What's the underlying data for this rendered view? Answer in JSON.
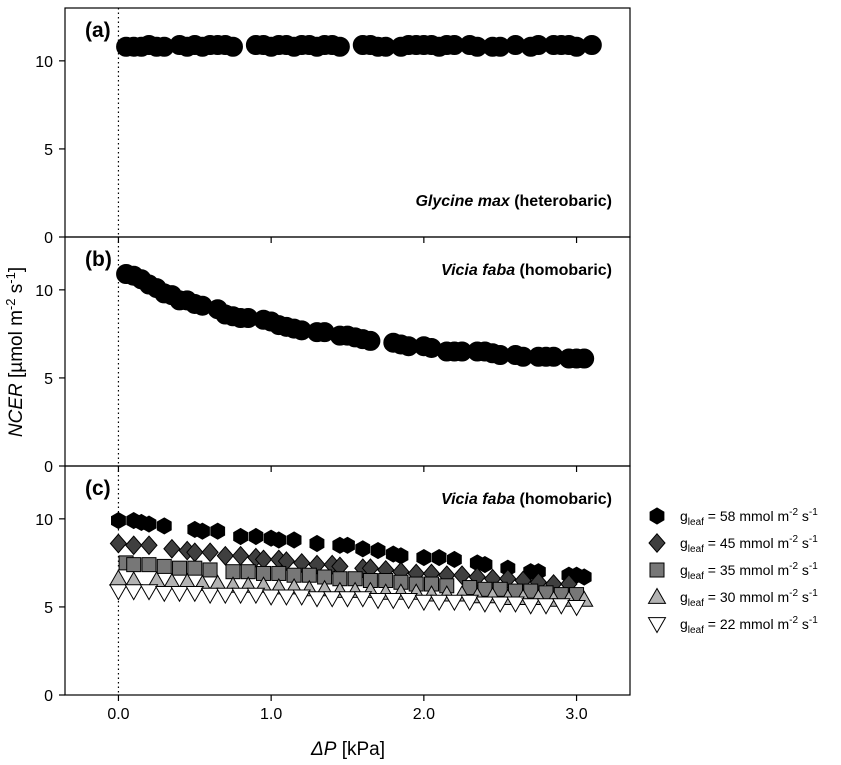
{
  "chart_data": {
    "type": "scatter",
    "xlabel": {
      "var": "ΔP",
      "unit": " [kPa]"
    },
    "ylabel": {
      "var": "NCER",
      "unit_pre": " [µmol m",
      "sup1": "-2",
      "mid": " s",
      "sup2": "-1",
      "end": "]"
    },
    "xlim": [
      -0.35,
      3.35
    ],
    "x_ticks": [
      {
        "value": 0,
        "label": "0.0"
      },
      {
        "value": 1,
        "label": "1.0"
      },
      {
        "value": 2,
        "label": "2.0"
      },
      {
        "value": 3,
        "label": "3.0"
      }
    ],
    "reference_line_x": 0,
    "panels": [
      {
        "id": "a",
        "label": "(a)",
        "ylim": [
          0,
          13
        ],
        "y_ticks": [
          {
            "value": 0,
            "label": "0"
          },
          {
            "value": 5,
            "label": "5"
          },
          {
            "value": 10,
            "label": "10"
          }
        ],
        "annotation": {
          "italic": "Glycine max",
          "normal": " (heterobaric)"
        },
        "series": [
          {
            "marker": "circle",
            "fill": "#000000",
            "x": [
              0.05,
              0.1,
              0.15,
              0.2,
              0.25,
              0.3,
              0.4,
              0.45,
              0.5,
              0.55,
              0.6,
              0.65,
              0.7,
              0.75,
              0.9,
              0.95,
              1.0,
              1.05,
              1.1,
              1.15,
              1.2,
              1.25,
              1.3,
              1.35,
              1.4,
              1.45,
              1.6,
              1.65,
              1.7,
              1.75,
              1.85,
              1.9,
              1.95,
              2.0,
              2.05,
              2.1,
              2.15,
              2.2,
              2.3,
              2.35,
              2.45,
              2.5,
              2.6,
              2.7,
              2.75,
              2.85,
              2.9,
              2.95,
              3.0,
              3.1
            ],
            "y": [
              10.8,
              10.8,
              10.8,
              10.9,
              10.8,
              10.8,
              10.9,
              10.8,
              10.9,
              10.8,
              10.9,
              10.9,
              10.9,
              10.8,
              10.9,
              10.9,
              10.8,
              10.9,
              10.9,
              10.8,
              10.9,
              10.9,
              10.8,
              10.9,
              10.9,
              10.8,
              10.9,
              10.9,
              10.8,
              10.8,
              10.8,
              10.9,
              10.9,
              10.9,
              10.9,
              10.8,
              10.9,
              10.9,
              10.9,
              10.8,
              10.8,
              10.8,
              10.9,
              10.8,
              10.9,
              10.9,
              10.9,
              10.9,
              10.8,
              10.9
            ]
          }
        ]
      },
      {
        "id": "b",
        "label": "(b)",
        "ylim": [
          0,
          13
        ],
        "y_ticks": [
          {
            "value": 0,
            "label": "0"
          },
          {
            "value": 5,
            "label": "5"
          },
          {
            "value": 10,
            "label": "10"
          }
        ],
        "annotation": {
          "italic": "Vicia faba",
          "normal": " (homobaric)"
        },
        "series": [
          {
            "marker": "circle",
            "fill": "#000000",
            "x": [
              0.05,
              0.1,
              0.15,
              0.2,
              0.25,
              0.3,
              0.35,
              0.4,
              0.45,
              0.5,
              0.55,
              0.65,
              0.7,
              0.75,
              0.8,
              0.85,
              0.95,
              1.0,
              1.05,
              1.1,
              1.15,
              1.2,
              1.3,
              1.35,
              1.45,
              1.5,
              1.55,
              1.6,
              1.65,
              1.8,
              1.85,
              1.9,
              2.0,
              2.05,
              2.15,
              2.2,
              2.25,
              2.35,
              2.4,
              2.45,
              2.5,
              2.6,
              2.65,
              2.75,
              2.8,
              2.85,
              2.95,
              3.0,
              3.05
            ],
            "y": [
              10.9,
              10.8,
              10.6,
              10.3,
              10.1,
              9.8,
              9.7,
              9.4,
              9.4,
              9.2,
              9.1,
              8.9,
              8.6,
              8.5,
              8.4,
              8.4,
              8.3,
              8.2,
              8.0,
              7.9,
              7.8,
              7.7,
              7.6,
              7.6,
              7.4,
              7.4,
              7.3,
              7.2,
              7.1,
              7.0,
              6.9,
              6.8,
              6.8,
              6.7,
              6.5,
              6.5,
              6.5,
              6.5,
              6.5,
              6.4,
              6.3,
              6.3,
              6.2,
              6.2,
              6.2,
              6.2,
              6.1,
              6.1,
              6.1
            ]
          }
        ]
      },
      {
        "id": "c",
        "label": "(c)",
        "ylim": [
          0,
          13
        ],
        "y_ticks": [
          {
            "value": 0,
            "label": "0"
          },
          {
            "value": 5,
            "label": "5"
          },
          {
            "value": 10,
            "label": "10"
          }
        ],
        "annotation": {
          "italic": "Vicia faba",
          "normal": " (homobaric)"
        },
        "series": [
          {
            "name": "g_leaf = 58 mmol m-2 s-1",
            "legend": {
              "g": "g",
              "sub": "leaf",
              "text": " = 58 mmol m",
              "sup1": "-2",
              "mid": " s",
              "sup2": "-1"
            },
            "marker": "hexagon",
            "fill": "#000000",
            "x": [
              0.0,
              0.1,
              0.15,
              0.2,
              0.3,
              0.5,
              0.55,
              0.65,
              0.8,
              0.9,
              1.0,
              1.05,
              1.15,
              1.3,
              1.45,
              1.5,
              1.6,
              1.7,
              1.8,
              1.85,
              2.0,
              2.1,
              2.2,
              2.35,
              2.4,
              2.55,
              2.7,
              2.75,
              2.95,
              3.0,
              3.05
            ],
            "y": [
              9.9,
              9.9,
              9.8,
              9.7,
              9.6,
              9.4,
              9.3,
              9.3,
              9.0,
              9.0,
              8.9,
              8.8,
              8.8,
              8.6,
              8.5,
              8.5,
              8.3,
              8.2,
              8.0,
              7.9,
              7.8,
              7.8,
              7.7,
              7.5,
              7.4,
              7.2,
              7.0,
              7.0,
              6.8,
              6.8,
              6.7
            ]
          },
          {
            "name": "g_leaf = 45 mmol m-2 s-1",
            "legend": {
              "g": "g",
              "sub": "leaf",
              "text": " = 45 mmol m",
              "sup1": "-2",
              "mid": " s",
              "sup2": "-1"
            },
            "marker": "diamond",
            "fill": "#3f3f3f",
            "x": [
              0.0,
              0.1,
              0.2,
              0.35,
              0.45,
              0.5,
              0.6,
              0.7,
              0.8,
              0.9,
              0.95,
              1.05,
              1.1,
              1.2,
              1.3,
              1.4,
              1.45,
              1.6,
              1.65,
              1.75,
              1.85,
              1.95,
              2.05,
              2.15,
              2.25,
              2.35,
              2.45,
              2.55,
              2.65,
              2.75,
              2.85,
              2.95
            ],
            "y": [
              8.6,
              8.5,
              8.5,
              8.3,
              8.2,
              8.1,
              8.1,
              7.9,
              7.9,
              7.8,
              7.7,
              7.7,
              7.6,
              7.5,
              7.4,
              7.4,
              7.3,
              7.2,
              7.2,
              7.1,
              7.0,
              6.9,
              6.9,
              6.8,
              6.8,
              6.7,
              6.6,
              6.6,
              6.5,
              6.4,
              6.3,
              6.3
            ]
          },
          {
            "name": "g_leaf = 35 mmol m-2 s-1",
            "legend": {
              "g": "g",
              "sub": "leaf",
              "text": " = 35 mmol m",
              "sup1": "-2",
              "mid": " s",
              "sup2": "-1"
            },
            "marker": "square",
            "fill": "#777777",
            "x": [
              0.05,
              0.1,
              0.2,
              0.3,
              0.4,
              0.5,
              0.6,
              0.75,
              0.85,
              0.95,
              1.05,
              1.15,
              1.25,
              1.35,
              1.45,
              1.55,
              1.65,
              1.75,
              1.85,
              1.95,
              2.05,
              2.15,
              2.3,
              2.4,
              2.5,
              2.6,
              2.7,
              2.8,
              2.9,
              3.0
            ],
            "y": [
              7.5,
              7.4,
              7.4,
              7.3,
              7.2,
              7.2,
              7.1,
              7.0,
              7.0,
              6.9,
              6.9,
              6.8,
              6.8,
              6.7,
              6.6,
              6.6,
              6.5,
              6.5,
              6.4,
              6.3,
              6.3,
              6.2,
              6.1,
              6.0,
              6.0,
              5.9,
              5.9,
              5.8,
              5.7,
              5.7
            ]
          },
          {
            "name": "g_leaf = 30 mmol m-2 s-1",
            "legend": {
              "g": "g",
              "sub": "leaf",
              "text": " = 30 mmol m",
              "sup1": "-2",
              "mid": " s",
              "sup2": "-1"
            },
            "marker": "triangle-up",
            "fill": "#b3b3b3",
            "x": [
              0.0,
              0.1,
              0.25,
              0.35,
              0.45,
              0.55,
              0.65,
              0.75,
              0.85,
              0.95,
              1.05,
              1.15,
              1.25,
              1.35,
              1.45,
              1.55,
              1.65,
              1.75,
              1.85,
              1.95,
              2.05,
              2.15,
              2.25,
              2.35,
              2.45,
              2.55,
              2.65,
              2.75,
              2.85,
              2.95,
              3.05
            ],
            "y": [
              6.6,
              6.5,
              6.5,
              6.4,
              6.4,
              6.3,
              6.3,
              6.2,
              6.2,
              6.2,
              6.1,
              6.1,
              6.0,
              6.0,
              5.9,
              5.9,
              5.9,
              5.8,
              5.8,
              5.8,
              5.7,
              5.7,
              5.7,
              5.6,
              5.6,
              5.5,
              5.5,
              5.5,
              5.4,
              5.4,
              5.4
            ]
          },
          {
            "name": "g_leaf = 22 mmol m-2 s-1",
            "legend": {
              "g": "g",
              "sub": "leaf",
              "text": " = 22 mmol m",
              "sup1": "-2",
              "mid": " s",
              "sup2": "-1"
            },
            "marker": "triangle-down",
            "fill": "#ffffff",
            "x": [
              0.0,
              0.1,
              0.2,
              0.3,
              0.4,
              0.5,
              0.6,
              0.7,
              0.8,
              0.9,
              1.0,
              1.1,
              1.2,
              1.3,
              1.4,
              1.5,
              1.6,
              1.7,
              1.8,
              1.9,
              2.0,
              2.1,
              2.2,
              2.3,
              2.4,
              2.5,
              2.6,
              2.7,
              2.8,
              2.9,
              3.0
            ],
            "y": [
              5.9,
              5.9,
              5.9,
              5.8,
              5.8,
              5.8,
              5.7,
              5.7,
              5.7,
              5.7,
              5.6,
              5.6,
              5.6,
              5.5,
              5.5,
              5.5,
              5.5,
              5.4,
              5.4,
              5.4,
              5.3,
              5.3,
              5.3,
              5.3,
              5.2,
              5.2,
              5.2,
              5.1,
              5.1,
              5.1,
              5.0
            ]
          }
        ]
      }
    ]
  }
}
